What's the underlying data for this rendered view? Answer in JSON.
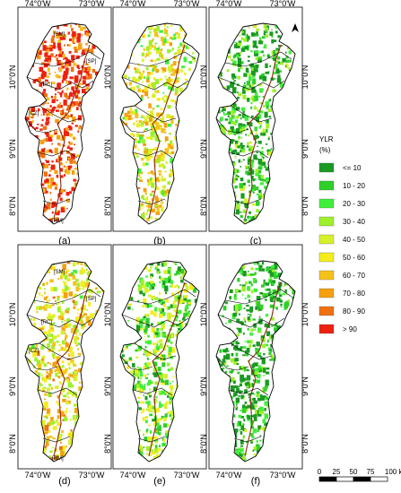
{
  "axes": {
    "lon_ticks": [
      "74°0'W",
      "73°0'W"
    ],
    "lat_ticks": [
      "10°0'N",
      "9°0'N",
      "8°0'N"
    ]
  },
  "panels": [
    {
      "label": "(a)",
      "palette_bias": 0.9
    },
    {
      "label": "(b)",
      "palette_bias": 0.5
    },
    {
      "label": "(c)",
      "palette_bias": 0.15
    },
    {
      "label": "(d)",
      "palette_bias": 0.55
    },
    {
      "label": "(e)",
      "palette_bias": 0.3
    },
    {
      "label": "(f)",
      "palette_bias": 0.1
    }
  ],
  "regions": [
    "[SM]",
    "[SP]",
    "[RC]",
    "[CZ]",
    "[RM]"
  ],
  "north_arrow": "north-arrow-icon",
  "legend": {
    "title_line1": "YLR",
    "title_line2": "(%)",
    "classes": [
      {
        "label": "<= 10",
        "color": "#1a9a22"
      },
      {
        "label": "10 - 20",
        "color": "#2fcf2a"
      },
      {
        "label": "20 - 30",
        "color": "#3ff03a"
      },
      {
        "label": "30 - 40",
        "color": "#9ef02a"
      },
      {
        "label": "40 - 50",
        "color": "#d8f02a"
      },
      {
        "label": "50 - 60",
        "color": "#f4ec1c"
      },
      {
        "label": "60 - 70",
        "color": "#f5c21a"
      },
      {
        "label": "70 - 80",
        "color": "#f5a010"
      },
      {
        "label": "80 - 90",
        "color": "#f07010"
      },
      {
        "label": "> 90",
        "color": "#ee2010"
      }
    ]
  },
  "scale_bar": {
    "labels": [
      "0",
      "25",
      "50",
      "75",
      "100 km"
    ]
  }
}
